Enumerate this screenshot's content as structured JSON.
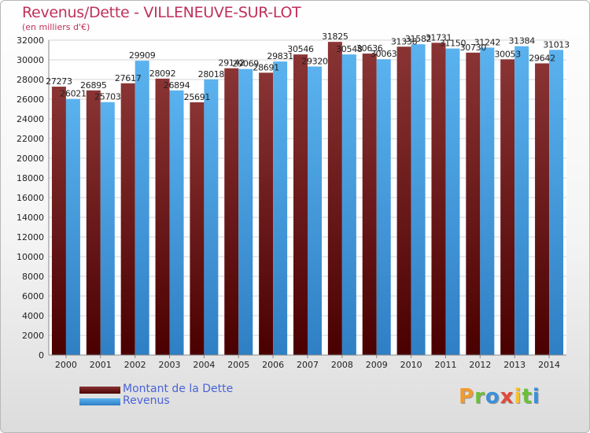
{
  "chart_data": {
    "type": "bar",
    "title": "Revenus/Dette - VILLENEUVE-SUR-LOT",
    "subtitle": "(en milliers d'€)",
    "xlabel": "",
    "ylabel": "",
    "ylim": [
      0,
      32000
    ],
    "yticks": [
      0,
      2000,
      4000,
      6000,
      8000,
      10000,
      12000,
      14000,
      16000,
      18000,
      20000,
      22000,
      24000,
      26000,
      28000,
      30000,
      32000
    ],
    "grid": true,
    "legend_position": "bottom-left",
    "categories": [
      "2000",
      "2001",
      "2002",
      "2003",
      "2004",
      "2005",
      "2006",
      "2007",
      "2008",
      "2009",
      "2010",
      "2011",
      "2012",
      "2013",
      "2014"
    ],
    "series": [
      {
        "name": "Montant de la Dette",
        "color": "#7a2a2a",
        "values": [
          27273,
          26895,
          27617,
          28092,
          25691,
          29142,
          28691,
          30546,
          31825,
          30636,
          31338,
          31731,
          30730,
          30053,
          29642
        ]
      },
      {
        "name": "Revenus",
        "color": "#4fa7e6",
        "values": [
          26021,
          25703,
          29909,
          26894,
          28018,
          29069,
          29831,
          29320,
          30548,
          30063,
          31582,
          31150,
          31242,
          31384,
          31013
        ]
      }
    ]
  },
  "logo": {
    "text": "Proxiti",
    "letters": [
      {
        "ch": "P",
        "color": "#f29a2e"
      },
      {
        "ch": "r",
        "color": "#6bbf3a"
      },
      {
        "ch": "o",
        "color": "#3a8fd9"
      },
      {
        "ch": "x",
        "color": "#e04a3a"
      },
      {
        "ch": "i",
        "color": "#f2c12e"
      },
      {
        "ch": "t",
        "color": "#6bbf3a"
      },
      {
        "ch": "i",
        "color": "#3a8fd9"
      }
    ]
  }
}
